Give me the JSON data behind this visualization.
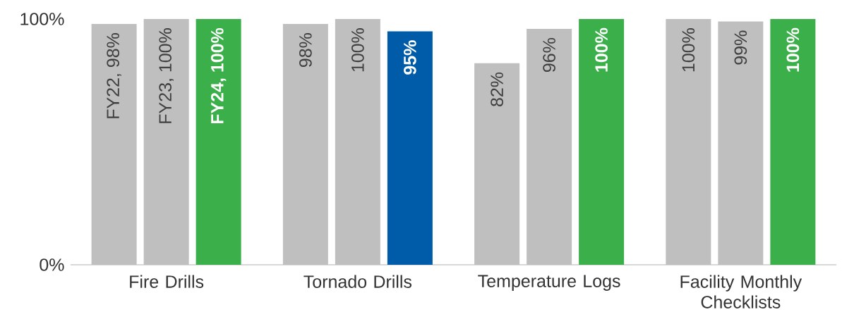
{
  "chart_data": {
    "type": "bar",
    "categories": [
      "Fire Drills",
      "Tornado Drills",
      "Temperature Logs",
      "Facility Monthly Checklists"
    ],
    "series": [
      {
        "color": "#bfbfbf",
        "values": [
          98,
          98,
          82,
          100
        ],
        "value_labels": [
          "FY22, 98%",
          "98%",
          "82%",
          "100%"
        ]
      },
      {
        "color": "#bfbfbf",
        "values": [
          100,
          100,
          96,
          99
        ],
        "value_labels": [
          "FY23, 100%",
          "100%",
          "96%",
          "99%"
        ]
      },
      {
        "colors": [
          "#3bb04a",
          "#005ca9",
          "#3bb04a",
          "#3bb04a"
        ],
        "values": [
          100,
          95,
          100,
          100
        ],
        "value_labels": [
          "FY24, 100%",
          "95%",
          "100%",
          "100%"
        ]
      }
    ],
    "ylim": [
      0,
      100
    ],
    "yticks": [
      {
        "value": 0,
        "label": "0%"
      },
      {
        "value": 100,
        "label": "100%"
      }
    ],
    "grid": false
  }
}
